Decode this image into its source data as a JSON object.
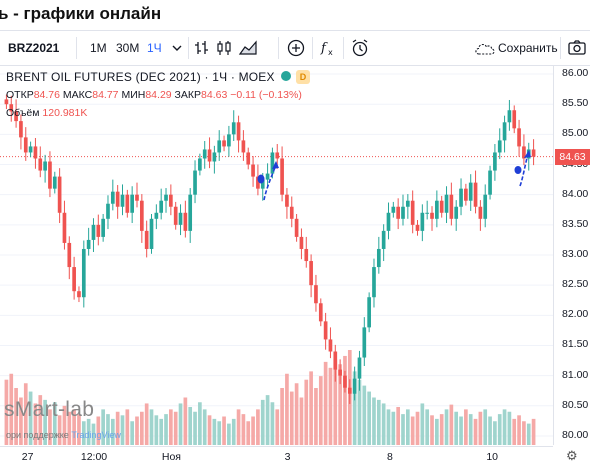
{
  "page": {
    "title": "ь - графики онлайн"
  },
  "toolbar": {
    "symbol": "BRZ2021",
    "intervals": [
      "1М",
      "30М",
      "1Ч"
    ],
    "active_interval": "1Ч",
    "save_label": "Сохранить",
    "icons": [
      "chevron-down-icon",
      "bar-style-icon",
      "candles-icon",
      "area-chart-icon",
      "add-compare-icon",
      "indicators-fx-icon",
      "alert-clock-icon",
      "cloud-icon",
      "camera-icon"
    ]
  },
  "legend": {
    "title": "BRENT OIL FUTURES (DEC 2021) · 1Ч · MOEX",
    "open_label": "ОТКР",
    "open": "84.76",
    "high_label": "МАКС",
    "high": "84.77",
    "low_label": "МИН",
    "low": "84.29",
    "close_label": "ЗАКР",
    "close": "84.63",
    "change": "−0.11 (−0.13%)",
    "volume_label": "Объём",
    "volume": "120.981K",
    "badge": "D"
  },
  "watermark": {
    "brand": "sMart-lab",
    "support_prefix": "ори поддержке",
    "support_brand": "TradingView"
  },
  "colors": {
    "up": "#26a69a",
    "down": "#ef5350",
    "vol_up": "#9fd4cd",
    "vol_down": "#f5a9a7",
    "accent": "#2962ff",
    "last_price": "#ef5350"
  },
  "chart_data": {
    "type": "candlestick",
    "title": "BRENT OIL FUTURES (DEC 2021)",
    "y_ticks": [
      86.0,
      85.5,
      85.0,
      84.5,
      84.0,
      83.5,
      83.0,
      82.5,
      82.0,
      81.5,
      81.0,
      80.5,
      80.0
    ],
    "ylim": [
      79.85,
      86.15
    ],
    "last_price": "84.63",
    "x_ticks": [
      "27",
      "12:00",
      "Ноя",
      "3",
      "8",
      "10"
    ],
    "closes": [
      85.5,
      85.38,
      85.22,
      84.95,
      84.7,
      84.8,
      84.6,
      84.4,
      84.55,
      84.1,
      84.3,
      83.7,
      83.2,
      82.8,
      82.4,
      82.3,
      83.1,
      83.25,
      83.5,
      83.3,
      83.6,
      83.85,
      84.05,
      83.8,
      84.0,
      83.7,
      84.0,
      83.9,
      83.4,
      83.1,
      83.6,
      83.7,
      83.9,
      84.0,
      83.8,
      83.5,
      83.7,
      83.4,
      84.0,
      84.4,
      84.6,
      84.75,
      84.55,
      84.7,
      84.9,
      84.8,
      85.0,
      85.2,
      84.9,
      84.7,
      84.5,
      84.3,
      84.1,
      84.25,
      84.35,
      84.7,
      84.6,
      84.0,
      83.8,
      83.6,
      83.3,
      83.1,
      82.9,
      82.5,
      82.2,
      81.9,
      81.6,
      81.4,
      81.1,
      81.0,
      80.8,
      80.7,
      80.95,
      81.3,
      81.8,
      82.3,
      82.8,
      83.1,
      83.4,
      83.7,
      83.8,
      83.6,
      83.8,
      83.9,
      83.5,
      83.4,
      83.7,
      83.7,
      83.6,
      83.9,
      83.7,
      84.0,
      83.6,
      83.8,
      84.1,
      83.9,
      84.2,
      83.8,
      83.6,
      84.0,
      84.4,
      84.7,
      84.9,
      85.2,
      85.4,
      85.1,
      84.8,
      84.6,
      84.75,
      84.63
    ],
    "volumes": [
      55,
      60,
      48,
      40,
      52,
      45,
      35,
      42,
      38,
      30,
      36,
      25,
      33,
      28,
      30,
      26,
      20,
      22,
      18,
      24,
      30,
      26,
      22,
      28,
      25,
      30,
      20,
      24,
      28,
      35,
      30,
      25,
      22,
      26,
      30,
      28,
      35,
      40,
      32,
      28,
      36,
      30,
      25,
      22,
      20,
      24,
      18,
      22,
      30,
      26,
      20,
      24,
      30,
      38,
      42,
      36,
      30,
      48,
      60,
      45,
      52,
      40,
      55,
      62,
      48,
      58,
      70,
      65,
      72,
      68,
      75,
      80,
      62,
      55,
      50,
      45,
      40,
      38,
      35,
      30,
      28,
      32,
      26,
      30,
      24,
      28,
      35,
      30,
      25,
      22,
      26,
      30,
      34,
      28,
      24,
      30,
      26,
      22,
      28,
      30,
      24,
      20,
      26,
      30,
      28,
      22,
      25,
      20,
      18,
      22
    ]
  }
}
